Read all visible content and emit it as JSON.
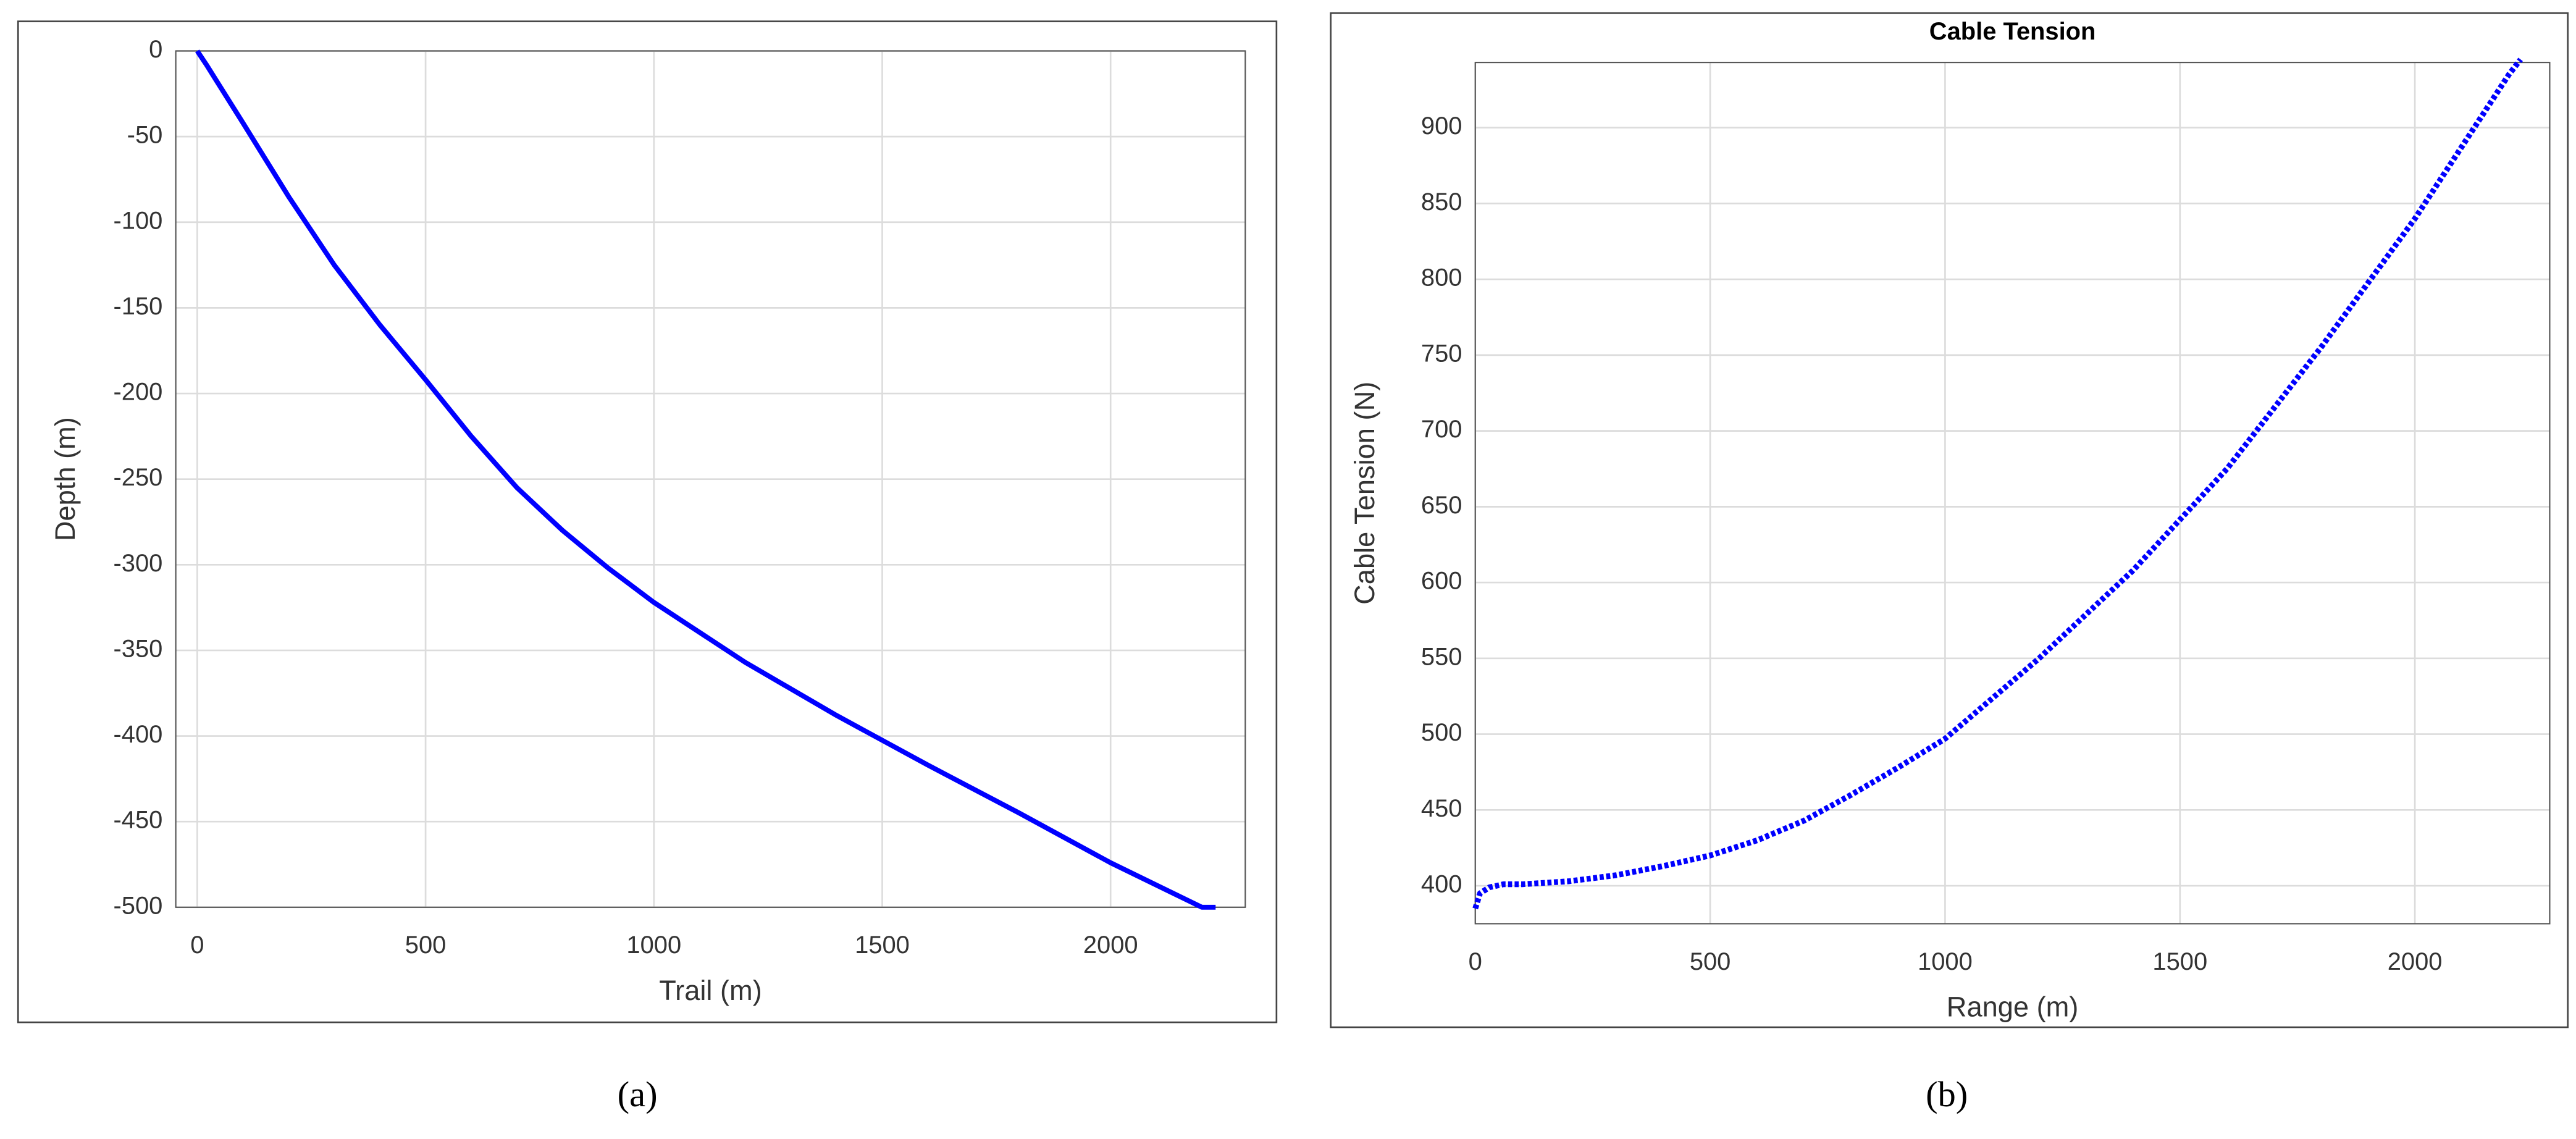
{
  "chart_data": [
    {
      "type": "line",
      "caption": "(a)",
      "x_label": "Trail (m)",
      "y_label": "Depth (m)",
      "x": [
        0,
        20,
        100,
        200,
        300,
        400,
        500,
        600,
        700,
        800,
        900,
        1000,
        1200,
        1400,
        1600,
        1800,
        2000,
        2200,
        2230
      ],
      "values": [
        0,
        -8,
        -42,
        -85,
        -125,
        -160,
        -192,
        -225,
        -255,
        -280,
        -302,
        -322,
        -357,
        -388,
        -417,
        -445,
        -474,
        -500,
        -500
      ],
      "color": "#0000ff",
      "line_style": "solid",
      "xlim": [
        -47,
        2295
      ],
      "ylim": [
        -500,
        0
      ],
      "xticks": [
        0,
        500,
        1000,
        1500,
        2000
      ],
      "yticks": [
        0,
        -50,
        -100,
        -150,
        -200,
        -250,
        -300,
        -350,
        -400,
        -450,
        -500
      ],
      "grid": true
    },
    {
      "type": "line",
      "title": "Cable Tension",
      "caption": "(b)",
      "x_label": "Range (m)",
      "y_label": "Cable Tension (N)",
      "x": [
        0,
        10,
        30,
        60,
        100,
        200,
        300,
        400,
        500,
        600,
        700,
        800,
        900,
        1000,
        1200,
        1400,
        1600,
        1800,
        2000,
        2200,
        2225
      ],
      "values": [
        385,
        395,
        399,
        401,
        401,
        403,
        407,
        413,
        420,
        430,
        443,
        460,
        478,
        497,
        550,
        608,
        675,
        755,
        840,
        935,
        945
      ],
      "color": "#0000ff",
      "line_style": "dotted",
      "xlim": [
        0,
        2287
      ],
      "ylim": [
        375,
        943
      ],
      "xticks": [
        0,
        500,
        1000,
        1500,
        2000
      ],
      "yticks": [
        400,
        450,
        500,
        550,
        600,
        650,
        700,
        750,
        800,
        850,
        900
      ],
      "grid": true
    }
  ]
}
